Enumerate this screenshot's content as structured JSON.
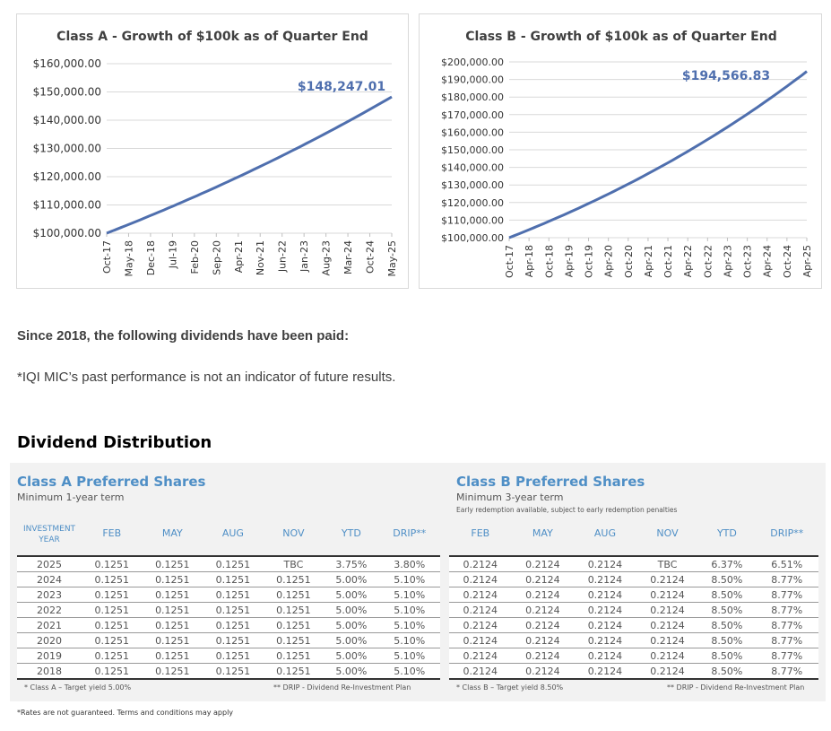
{
  "chart_data": [
    {
      "type": "line",
      "title": "Class A - Growth of $100k as of Quarter End",
      "x_ticks": [
        "Oct-17",
        "May-18",
        "Dec-18",
        "Jul-19",
        "Feb-20",
        "Sep-20",
        "Apr-21",
        "Nov-21",
        "Jun-22",
        "Jan-23",
        "Aug-23",
        "Mar-24",
        "Oct-24",
        "May-25"
      ],
      "y_ticks": [
        "$100,000.00",
        "$110,000.00",
        "$120,000.00",
        "$130,000.00",
        "$140,000.00",
        "$150,000.00",
        "$160,000.00"
      ],
      "ylim": [
        100000,
        160000
      ],
      "start_value": 100000,
      "end_value": 148247.01,
      "data_label": "$148,247.01",
      "color": "#4f6fae",
      "grid": true
    },
    {
      "type": "line",
      "title": "Class B - Growth of $100k as of Quarter End",
      "x_ticks": [
        "Oct-17",
        "Apr-18",
        "Oct-18",
        "Apr-19",
        "Oct-19",
        "Apr-20",
        "Oct-20",
        "Apr-21",
        "Oct-21",
        "Apr-22",
        "Oct-22",
        "Apr-23",
        "Oct-23",
        "Apr-24",
        "Oct-24",
        "Apr-25"
      ],
      "y_ticks": [
        "$100,000.00",
        "$110,000.00",
        "$120,000.00",
        "$130,000.00",
        "$140,000.00",
        "$150,000.00",
        "$160,000.00",
        "$170,000.00",
        "$180,000.00",
        "$190,000.00",
        "$200,000.00"
      ],
      "ylim": [
        100000,
        200000
      ],
      "start_value": 100000,
      "end_value": 194566.83,
      "data_label": "$194,566.83",
      "color": "#4f6fae",
      "grid": true
    }
  ],
  "text": {
    "since_2018": "Since 2018, the following dividends have been paid:",
    "disclaimer": "*IQI MIC’s past performance is not an indicator of future results.",
    "dividend_distribution": "Dividend Distribution",
    "rates_note": "*Rates are not guaranteed.  Terms and conditions may apply"
  },
  "class_a": {
    "title": "Class A Preferred Shares",
    "subtitle": "Minimum 1-year term",
    "columns": [
      "INVESTMENT YEAR",
      "FEB",
      "MAY",
      "AUG",
      "NOV",
      "YTD",
      "DRIP**"
    ],
    "rows": [
      [
        "2025",
        "0.1251",
        "0.1251",
        "0.1251",
        "TBC",
        "3.75%",
        "3.80%"
      ],
      [
        "2024",
        "0.1251",
        "0.1251",
        "0.1251",
        "0.1251",
        "5.00%",
        "5.10%"
      ],
      [
        "2023",
        "0.1251",
        "0.1251",
        "0.1251",
        "0.1251",
        "5.00%",
        "5.10%"
      ],
      [
        "2022",
        "0.1251",
        "0.1251",
        "0.1251",
        "0.1251",
        "5.00%",
        "5.10%"
      ],
      [
        "2021",
        "0.1251",
        "0.1251",
        "0.1251",
        "0.1251",
        "5.00%",
        "5.10%"
      ],
      [
        "2020",
        "0.1251",
        "0.1251",
        "0.1251",
        "0.1251",
        "5.00%",
        "5.10%"
      ],
      [
        "2019",
        "0.1251",
        "0.1251",
        "0.1251",
        "0.1251",
        "5.00%",
        "5.10%"
      ],
      [
        "2018",
        "0.1251",
        "0.1251",
        "0.1251",
        "0.1251",
        "5.00%",
        "5.10%"
      ]
    ],
    "foot_left": "* Class A – Target yield 5.00%",
    "foot_right": "** DRIP - Dividend Re-Investment Plan"
  },
  "class_b": {
    "title": "Class B Preferred Shares",
    "subtitle": "Minimum 3-year term",
    "subtitle2": "Early redemption available, subject to early redemption penalties",
    "columns": [
      "FEB",
      "MAY",
      "AUG",
      "NOV",
      "YTD",
      "DRIP**"
    ],
    "rows": [
      [
        "0.2124",
        "0.2124",
        "0.2124",
        "TBC",
        "6.37%",
        "6.51%"
      ],
      [
        "0.2124",
        "0.2124",
        "0.2124",
        "0.2124",
        "8.50%",
        "8.77%"
      ],
      [
        "0.2124",
        "0.2124",
        "0.2124",
        "0.2124",
        "8.50%",
        "8.77%"
      ],
      [
        "0.2124",
        "0.2124",
        "0.2124",
        "0.2124",
        "8.50%",
        "8.77%"
      ],
      [
        "0.2124",
        "0.2124",
        "0.2124",
        "0.2124",
        "8.50%",
        "8.77%"
      ],
      [
        "0.2124",
        "0.2124",
        "0.2124",
        "0.2124",
        "8.50%",
        "8.77%"
      ],
      [
        "0.2124",
        "0.2124",
        "0.2124",
        "0.2124",
        "8.50%",
        "8.77%"
      ],
      [
        "0.2124",
        "0.2124",
        "0.2124",
        "0.2124",
        "8.50%",
        "8.77%"
      ]
    ],
    "foot_left": "* Class B – Target yield 8.50%",
    "foot_right": "** DRIP - Dividend Re-Investment Plan"
  }
}
